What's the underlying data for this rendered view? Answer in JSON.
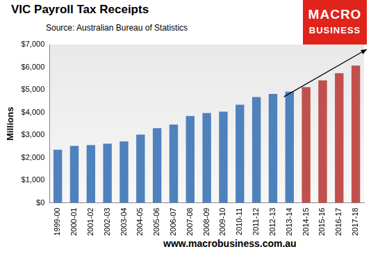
{
  "chart_data": {
    "type": "bar",
    "title": "VIC Payroll Tax Receipts",
    "subtitle": "Source: Australian Bureau of Statistics",
    "y_label": "Millions",
    "categories": [
      "1999-00",
      "2000-01",
      "2001-02",
      "2002-03",
      "2003-04",
      "2004-05",
      "2005-06",
      "2006-07",
      "2007-08",
      "2008-09",
      "2009-10",
      "2010-11",
      "2011-12",
      "2012-13",
      "2013-14",
      "2014-15",
      "2015-16",
      "2016-17",
      "2017-18"
    ],
    "values": [
      2350,
      2520,
      2560,
      2620,
      2720,
      3020,
      3300,
      3460,
      3840,
      3970,
      4030,
      4340,
      4680,
      4820,
      4920,
      5120,
      5420,
      5730,
      6070
    ],
    "colors": [
      "#4f81bd",
      "#4f81bd",
      "#4f81bd",
      "#4f81bd",
      "#4f81bd",
      "#4f81bd",
      "#4f81bd",
      "#4f81bd",
      "#4f81bd",
      "#4f81bd",
      "#4f81bd",
      "#4f81bd",
      "#4f81bd",
      "#4f81bd",
      "#4f81bd",
      "#c0504d",
      "#c0504d",
      "#c0504d",
      "#c0504d"
    ],
    "ylim": [
      0,
      7000
    ],
    "yticks": [
      {
        "value": 0,
        "label": "$0"
      },
      {
        "value": 1000,
        "label": "$1,000"
      },
      {
        "value": 2000,
        "label": "$2,000"
      },
      {
        "value": 3000,
        "label": "$3,000"
      },
      {
        "value": 4000,
        "label": "$4,000"
      },
      {
        "value": 5000,
        "label": "$5,000"
      },
      {
        "value": 6000,
        "label": "$6,000"
      },
      {
        "value": 7000,
        "label": "$7,000"
      }
    ],
    "grid": false,
    "annotations": [
      "MACRO",
      "BUSINESS",
      "www.macrobusiness.com.au"
    ]
  }
}
